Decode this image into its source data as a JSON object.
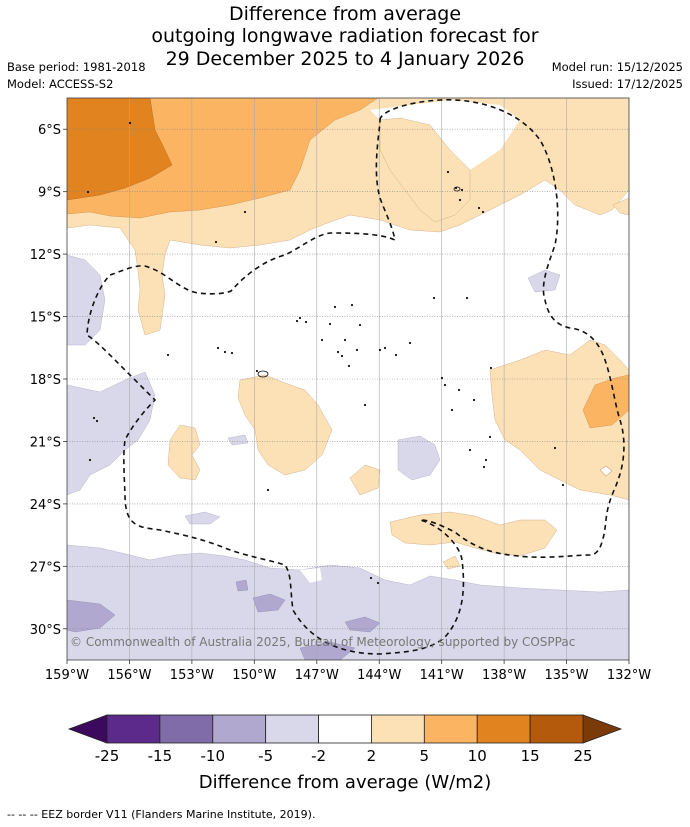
{
  "title_lines": [
    "Difference from average",
    "outgoing longwave radiation forecast for",
    "29 December 2025 to 4 January 2026"
  ],
  "meta_left": {
    "base_period": "Base period: 1981-2018",
    "model": "Model: ACCESS-S2"
  },
  "meta_right": {
    "model_run": "Model run: 15/12/2025",
    "issued": "Issued: 17/12/2025"
  },
  "copyright": "© Commonwealth of Australia 2025, Bureau of Meteorology, supported by COSPPac",
  "footer": "--  --  -- EEZ border V11 (Flanders Marine Institute, 2019).",
  "chart_data": {
    "type": "heatmap",
    "variable": "Outgoing longwave radiation anomaly",
    "units": "W/m2",
    "x_range": [
      -159,
      -132
    ],
    "y_range": [
      -31.5,
      -4.5
    ],
    "x_ticks": [
      {
        "value": -159,
        "label": "159°W"
      },
      {
        "value": -156,
        "label": "156°W"
      },
      {
        "value": -153,
        "label": "153°W"
      },
      {
        "value": -150,
        "label": "150°W"
      },
      {
        "value": -147,
        "label": "147°W"
      },
      {
        "value": -144,
        "label": "144°W"
      },
      {
        "value": -141,
        "label": "141°W"
      },
      {
        "value": -138,
        "label": "138°W"
      },
      {
        "value": -135,
        "label": "135°W"
      },
      {
        "value": -132,
        "label": "132°W"
      }
    ],
    "y_ticks": [
      {
        "value": -6,
        "label": "6°S"
      },
      {
        "value": -9,
        "label": "9°S"
      },
      {
        "value": -12,
        "label": "12°S"
      },
      {
        "value": -15,
        "label": "15°S"
      },
      {
        "value": -18,
        "label": "18°S"
      },
      {
        "value": -21,
        "label": "21°S"
      },
      {
        "value": -24,
        "label": "24°S"
      },
      {
        "value": -27,
        "label": "27°S"
      },
      {
        "value": -30,
        "label": "30°S"
      }
    ],
    "colorbar": {
      "label": "Difference from average (W/m2)",
      "tick_labels": [
        "-25",
        "-15",
        "-10",
        "-5",
        "-2",
        "2",
        "5",
        "10",
        "15",
        "25"
      ],
      "bins": [
        {
          "from": -25,
          "to": -15,
          "color": "#5b2a8a"
        },
        {
          "from": -15,
          "to": -10,
          "color": "#7f6ca8"
        },
        {
          "from": -10,
          "to": -5,
          "color": "#b0a8cf"
        },
        {
          "from": -5,
          "to": -2,
          "color": "#d8d8ea"
        },
        {
          "from": -2,
          "to": 2,
          "color": "#ffffff"
        },
        {
          "from": 2,
          "to": 5,
          "color": "#fde1b6"
        },
        {
          "from": 5,
          "to": 10,
          "color": "#fbb462"
        },
        {
          "from": 10,
          "to": 15,
          "color": "#e1831e"
        },
        {
          "from": 15,
          "to": 25,
          "color": "#b45a0c"
        }
      ],
      "under_color": "#3b0a5e",
      "over_color": "#7a3b08"
    }
  }
}
